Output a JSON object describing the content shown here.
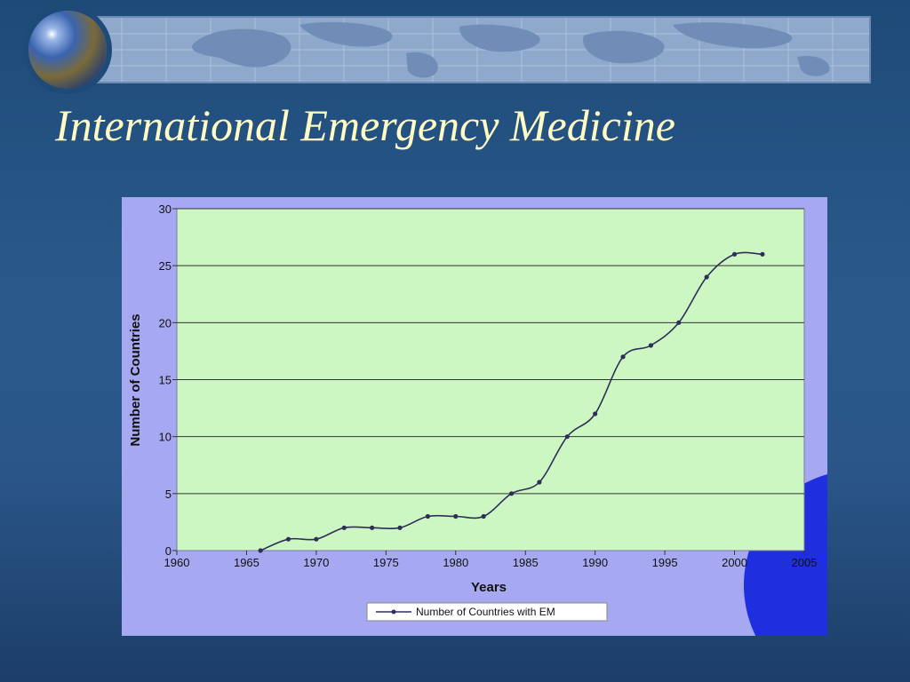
{
  "slide": {
    "title": "International Emergency Medicine"
  },
  "colors": {
    "background": "#2a5a8c",
    "title": "#fffbc4",
    "chart_frame": "#a6a9f1",
    "plot_area": "#cdf7c2",
    "line": "#2e2e5a",
    "decor_circle": "#1f2fe0"
  },
  "icons": [
    "globe-icon",
    "world-map-banner"
  ],
  "chart_data": {
    "type": "line",
    "title": "",
    "xlabel": "Years",
    "ylabel": "Number of Countries",
    "xlim": [
      1960,
      2005
    ],
    "ylim": [
      0,
      30
    ],
    "x_ticks": [
      1960,
      1965,
      1970,
      1975,
      1980,
      1985,
      1990,
      1995,
      2000,
      2005
    ],
    "y_ticks": [
      0,
      5,
      10,
      15,
      20,
      25,
      30
    ],
    "grid": "horizontal",
    "legend": "bottom",
    "series": [
      {
        "name": "Number of Countries with EM",
        "x": [
          1966,
          1968,
          1970,
          1972,
          1974,
          1976,
          1978,
          1980,
          1982,
          1984,
          1986,
          1988,
          1990,
          1992,
          1994,
          1996,
          1998,
          2000,
          2002
        ],
        "y": [
          0,
          1,
          1,
          2,
          2,
          2,
          3,
          3,
          3,
          5,
          6,
          10,
          12,
          17,
          18,
          20,
          24,
          26,
          26
        ]
      }
    ]
  }
}
